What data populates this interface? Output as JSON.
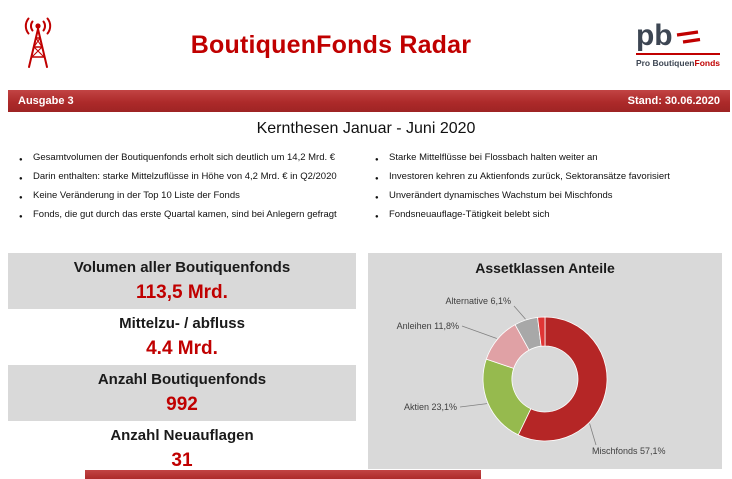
{
  "header": {
    "title": "BoutiquenFonds Radar",
    "logo": {
      "text": "pb",
      "subtitle_dark": "Pro Boutiquen",
      "subtitle_red": "Fonds"
    }
  },
  "banner": {
    "issue": "Ausgabe 3",
    "date": "Stand: 30.06.2020"
  },
  "kernthesen": {
    "title": "Kernthesen Januar - Juni 2020",
    "bullets_left": [
      "Gesamtvolumen der Boutiquenfonds erholt sich deutlich um 14,2 Mrd. €",
      "Darin enthalten: starke Mittelzuflüsse in Höhe von 4,2 Mrd. € in Q2/2020",
      "Keine Veränderung in der Top 10 Liste der Fonds",
      "Fonds, die gut durch das erste Quartal kamen, sind bei Anlegern gefragt"
    ],
    "bullets_right": [
      "Starke Mittelflüsse bei Flossbach halten weiter an",
      "Investoren kehren zu Aktienfonds zurück, Sektoransätze favorisiert",
      "Unverändert dynamisches Wachstum bei Mischfonds",
      "Fondsneuauflage-Tätigkeit belebt sich"
    ]
  },
  "stats": [
    {
      "label": "Volumen aller Boutiquenfonds",
      "value": "113,5 Mrd."
    },
    {
      "label": "Mittelzu- / abfluss",
      "value": "4.4 Mrd."
    },
    {
      "label": "Anzahl Boutiquenfonds",
      "value": "992"
    },
    {
      "label": "Anzahl Neuauflagen",
      "value": "31"
    }
  ],
  "chart_data": {
    "type": "pie",
    "donut": true,
    "title": "Assetklassen Anteile",
    "legend_position": "outside-labels-with-leader-lines",
    "slices": [
      {
        "label": "Mischfonds",
        "value": 57.1,
        "display": "Mischfonds 57,1%",
        "color": "#b52626"
      },
      {
        "label": "Aktien",
        "value": 23.1,
        "display": "Aktien 23,1%",
        "color": "#96ba4e"
      },
      {
        "label": "Anleihen",
        "value": 11.8,
        "display": "Anleihen 11,8%",
        "color": "#e0a1a5"
      },
      {
        "label": "Alternative",
        "value": 6.1,
        "display": "Alternative 6,1%",
        "color": "#a8a8a8"
      },
      {
        "label": "",
        "value": 1.9,
        "display": "",
        "color": "#e03535"
      }
    ]
  },
  "colors": {
    "accent_red": "#c00000",
    "banner_red": "#ad2a2a",
    "panel_gray": "#d9d9d9"
  }
}
